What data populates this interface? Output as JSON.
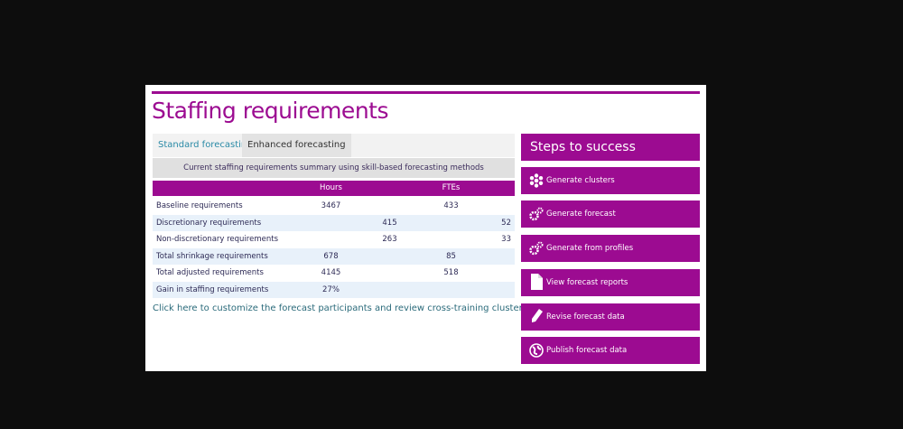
{
  "title": "Staffing requirements",
  "tabs": [
    {
      "label": "Standard forecasting",
      "active": false
    },
    {
      "label": "Enhanced forecasting",
      "active": true
    }
  ],
  "summary_caption": "Current staffing requirements summary using skill-based forecasting methods",
  "table": {
    "headers": {
      "hours": "Hours",
      "ftes": "FTEs"
    },
    "rows": [
      {
        "label": "Baseline requirements",
        "hours": "3467",
        "ftes": "433"
      },
      {
        "label": "Discretionary requirements",
        "hours": "415",
        "ftes": "52"
      },
      {
        "label": "Non-discretionary requirements",
        "hours": "263",
        "ftes": "33"
      },
      {
        "label": "Total shrinkage requirements",
        "hours": "678",
        "ftes": "85"
      },
      {
        "label": "Total adjusted requirements",
        "hours": "4145",
        "ftes": "518"
      },
      {
        "label": "Gain in staffing requirements",
        "hours": "27%",
        "ftes": ""
      }
    ]
  },
  "link": "Click here to customize the forecast participants and review cross-training cluster reports",
  "steps": {
    "title": "Steps to success",
    "buttons": [
      {
        "label": "Generate clusters",
        "icon": "clusters-icon"
      },
      {
        "label": "Generate forecast",
        "icon": "gears-icon"
      },
      {
        "label": "Generate from profiles",
        "icon": "gears-icon"
      },
      {
        "label": "View forecast reports",
        "icon": "document-icon"
      },
      {
        "label": "Revise forecast data",
        "icon": "pencil-icon"
      },
      {
        "label": "Publish forecast data",
        "icon": "globe-icon"
      }
    ]
  },
  "colors": {
    "accent": "#9c0b91",
    "link": "#2a6a7a",
    "tab_active_text": "#2a8aa6"
  }
}
